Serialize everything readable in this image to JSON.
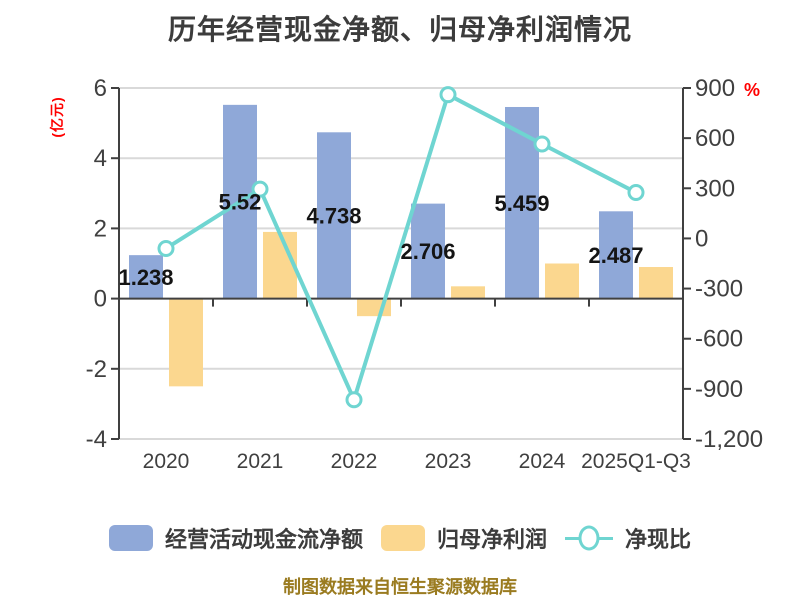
{
  "title": "历年经营现金净额、归母净利润情况",
  "footer_note": "制图数据来自恒生聚源数据库",
  "legend": {
    "items": [
      {
        "label": "经营活动现金流净额",
        "marker": "bar-swatch",
        "color": "#8FA8D8"
      },
      {
        "label": "归母净利润",
        "marker": "bar-swatch",
        "color": "#FBD78F"
      },
      {
        "label": "净现比",
        "marker": "line-dot",
        "color": "#6FD5D1"
      }
    ]
  },
  "chart_data": {
    "type": "combo",
    "title": "历年经营现金净额、归母净利润情况",
    "categories": [
      "2020",
      "2021",
      "2022",
      "2023",
      "2024",
      "2025Q1-Q3"
    ],
    "series": [
      {
        "name": "经营活动现金流净额",
        "type": "bar",
        "axis": "left",
        "unit": "亿元",
        "color": "#8FA8D8",
        "values": [
          1.238,
          5.52,
          4.738,
          2.706,
          5.459,
          2.487
        ],
        "data_labels": [
          "1.238",
          "5.52",
          "4.738",
          "2.706",
          "5.459",
          "2.487"
        ]
      },
      {
        "name": "归母净利润",
        "type": "bar",
        "axis": "left",
        "unit": "亿元",
        "color": "#FBD78F",
        "values": [
          -2.5,
          1.9,
          -0.5,
          0.35,
          1.0,
          0.9
        ]
      },
      {
        "name": "净现比",
        "type": "line",
        "axis": "right",
        "unit": "%",
        "color": "#6FD5D1",
        "values": [
          -60,
          295,
          -965,
          860,
          565,
          275
        ]
      }
    ],
    "left_axis": {
      "label": "(亿元)",
      "label_color": "#FF0000",
      "min": -4,
      "max": 6,
      "ticks": [
        6,
        4,
        2,
        0,
        -2,
        -4
      ],
      "tick_labels": [
        "6",
        "4",
        "2",
        "0",
        "-2",
        "-4"
      ]
    },
    "right_axis": {
      "label": "%",
      "label_color": "#FF0000",
      "min": -1200,
      "max": 900,
      "ticks": [
        900,
        600,
        300,
        0,
        -300,
        -600,
        -900,
        -1200
      ],
      "tick_labels": [
        "900",
        "600",
        "300",
        "0",
        "-300",
        "-600",
        "-900",
        "-1,200"
      ]
    },
    "grid": true,
    "legend_position": "bottom",
    "colors": {
      "bar_blue": "#8FA8D8",
      "bar_yellow": "#FBD78F",
      "line_teal": "#6FD5D1",
      "axis": "#404040",
      "gridline": "#D9D9D9",
      "title_text": "#3C3C3C",
      "data_label": "#141414",
      "footer": "#9A7B20",
      "unit_red": "#FF0000",
      "background": "#FFFFFF"
    }
  }
}
